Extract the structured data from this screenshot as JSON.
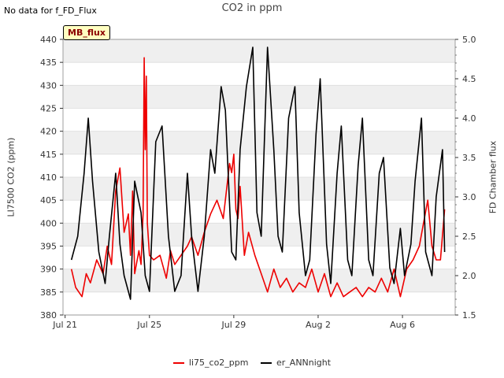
{
  "header": {
    "no_data_text": "No data for f_FD_Flux",
    "badge_text": "MB_flux"
  },
  "chart_data": {
    "type": "line",
    "title": "CO2 in ppm",
    "xlabel": "",
    "ylabel_left": "LI7500 CO2 (ppm)",
    "ylabel_right": "FD Chamber flux",
    "ylim_left": [
      380,
      440
    ],
    "ylim_right": [
      1.5,
      5.0
    ],
    "xlim_days": [
      -0.1,
      18.5
    ],
    "x_unit": "days since Jul 21",
    "x_ticks": [
      {
        "day": 0,
        "label": "Jul 21"
      },
      {
        "day": 4,
        "label": "Jul 25"
      },
      {
        "day": 8,
        "label": "Jul 29"
      },
      {
        "day": 12,
        "label": "Aug 2"
      },
      {
        "day": 16,
        "label": "Aug 6"
      }
    ],
    "y_ticks_left": [
      380,
      385,
      390,
      395,
      400,
      405,
      410,
      415,
      420,
      425,
      430,
      435,
      440
    ],
    "y_ticks_right": [
      1.5,
      2.0,
      2.5,
      3.0,
      3.5,
      4.0,
      4.5,
      5.0
    ],
    "series": [
      {
        "name": "li75_co2_ppm",
        "color": "#ee0000",
        "axis": "left",
        "x": [
          0.3,
          0.5,
          0.8,
          1.0,
          1.2,
          1.5,
          1.8,
          2.0,
          2.2,
          2.4,
          2.6,
          2.8,
          3.0,
          3.1,
          3.2,
          3.3,
          3.5,
          3.6,
          3.7,
          3.75,
          3.8,
          3.85,
          3.9,
          4.0,
          4.2,
          4.5,
          4.8,
          5.0,
          5.2,
          5.5,
          5.8,
          6.0,
          6.3,
          6.6,
          6.9,
          7.2,
          7.5,
          7.8,
          7.9,
          8.0,
          8.1,
          8.2,
          8.3,
          8.5,
          8.7,
          9.0,
          9.3,
          9.6,
          9.9,
          10.2,
          10.5,
          10.8,
          11.1,
          11.4,
          11.7,
          12.0,
          12.3,
          12.6,
          12.9,
          13.2,
          13.5,
          13.8,
          14.1,
          14.4,
          14.7,
          15.0,
          15.3,
          15.6,
          15.9,
          16.2,
          16.5,
          16.8,
          17.0,
          17.2,
          17.4,
          17.6,
          17.8,
          18.0
        ],
        "values": [
          390,
          386,
          384,
          389,
          387,
          392,
          389,
          395,
          391,
          407,
          412,
          398,
          402,
          393,
          407,
          389,
          394,
          391,
          402,
          436,
          416,
          432,
          400,
          393,
          392,
          393,
          388,
          394,
          391,
          393,
          395,
          397,
          393,
          398,
          402,
          405,
          401,
          413,
          411,
          415,
          403,
          401,
          408,
          393,
          398,
          393,
          389,
          385,
          390,
          386,
          388,
          385,
          387,
          386,
          390,
          385,
          389,
          384,
          387,
          384,
          385,
          386,
          384,
          386,
          385,
          388,
          385,
          390,
          384,
          390,
          392,
          395,
          400,
          405,
          395,
          392,
          392,
          403
        ]
      },
      {
        "name": "er_ANNnight",
        "color": "#000000",
        "axis": "right",
        "x": [
          0.3,
          0.6,
          0.9,
          1.1,
          1.3,
          1.6,
          1.9,
          2.1,
          2.4,
          2.6,
          2.8,
          3.1,
          3.3,
          3.6,
          3.8,
          4.0,
          4.3,
          4.6,
          4.9,
          5.2,
          5.5,
          5.8,
          6.0,
          6.3,
          6.6,
          6.9,
          7.1,
          7.4,
          7.6,
          7.9,
          8.1,
          8.3,
          8.6,
          8.9,
          9.1,
          9.3,
          9.6,
          9.9,
          10.1,
          10.3,
          10.6,
          10.9,
          11.1,
          11.4,
          11.6,
          11.9,
          12.1,
          12.4,
          12.6,
          12.9,
          13.1,
          13.4,
          13.6,
          13.9,
          14.1,
          14.4,
          14.6,
          14.9,
          15.1,
          15.4,
          15.6,
          15.9,
          16.1,
          16.4,
          16.6,
          16.9,
          17.1,
          17.4,
          17.6,
          17.9,
          18.0
        ],
        "values": [
          2.2,
          2.5,
          3.3,
          4.0,
          3.2,
          2.3,
          1.9,
          2.5,
          3.3,
          2.4,
          2.0,
          1.7,
          3.2,
          2.8,
          2.0,
          1.8,
          3.7,
          3.9,
          2.5,
          1.8,
          2.0,
          3.3,
          2.5,
          1.8,
          2.5,
          3.6,
          3.3,
          4.4,
          4.1,
          2.3,
          2.2,
          3.6,
          4.4,
          4.9,
          2.8,
          2.5,
          4.9,
          3.6,
          2.5,
          2.3,
          4.0,
          4.4,
          2.8,
          2.0,
          2.2,
          3.8,
          4.5,
          2.4,
          1.9,
          3.3,
          3.9,
          2.2,
          2.0,
          3.4,
          4.0,
          2.2,
          2.0,
          3.3,
          3.5,
          2.1,
          1.9,
          2.6,
          2.0,
          2.4,
          3.2,
          4.0,
          2.3,
          2.0,
          3.0,
          3.6,
          2.3
        ]
      }
    ],
    "legend_position": "bottom"
  }
}
